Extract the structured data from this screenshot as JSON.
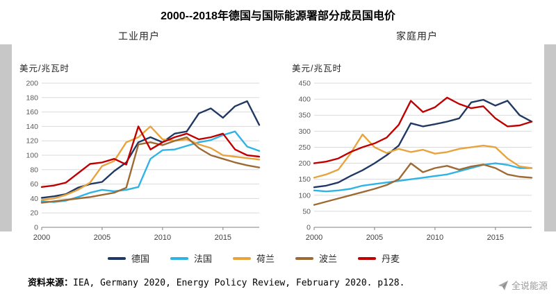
{
  "title": "2000--2018年德国与国际能源署部分成员国电价",
  "source_label": "资料来源：",
  "source_text": "IEA, Germany 2020, Energy Policy Review, February 2020. p128.",
  "watermark": "全说能源",
  "colors": {
    "germany": "#1f3864",
    "france": "#2eb3e6",
    "netherlands": "#e8a33d",
    "poland": "#9d6a33",
    "denmark": "#c00000",
    "grid": "#d9d9d9",
    "axis": "#808080"
  },
  "legend": [
    {
      "label": "德国",
      "color": "#1f3864"
    },
    {
      "label": "法国",
      "color": "#2eb3e6"
    },
    {
      "label": "荷兰",
      "color": "#e8a33d"
    },
    {
      "label": "波兰",
      "color": "#9d6a33"
    },
    {
      "label": "丹麦",
      "color": "#c00000"
    }
  ],
  "chart_data": [
    {
      "type": "line",
      "title": "工业用户",
      "ylabel": "美元/兆瓦时",
      "x": [
        2000,
        2001,
        2002,
        2003,
        2004,
        2005,
        2006,
        2007,
        2008,
        2009,
        2010,
        2011,
        2012,
        2013,
        2014,
        2015,
        2016,
        2017,
        2018
      ],
      "xlim": [
        2000,
        2018
      ],
      "xticks": [
        2000,
        2005,
        2010,
        2015
      ],
      "ylim": [
        0,
        200
      ],
      "ytick_step": 20,
      "grid": true,
      "series": [
        {
          "name": "德国",
          "color": "#1f3864",
          "values": [
            41,
            43,
            46,
            55,
            60,
            63,
            78,
            90,
            118,
            125,
            118,
            130,
            133,
            158,
            165,
            152,
            168,
            175,
            142
          ]
        },
        {
          "name": "法国",
          "color": "#2eb3e6",
          "values": [
            36,
            35,
            37,
            42,
            48,
            52,
            50,
            52,
            56,
            95,
            107,
            108,
            113,
            118,
            121,
            128,
            133,
            112,
            106
          ]
        },
        {
          "name": "荷兰",
          "color": "#e8a33d",
          "values": [
            38,
            40,
            45,
            52,
            62,
            85,
            92,
            118,
            125,
            140,
            122,
            120,
            122,
            115,
            110,
            100,
            98,
            96,
            94
          ]
        },
        {
          "name": "波兰",
          "color": "#9d6a33",
          "values": [
            34,
            36,
            38,
            40,
            42,
            45,
            48,
            55,
            115,
            118,
            114,
            120,
            125,
            110,
            100,
            95,
            90,
            86,
            83
          ]
        },
        {
          "name": "丹麦",
          "color": "#c00000",
          "values": [
            56,
            58,
            62,
            75,
            88,
            90,
            95,
            87,
            140,
            108,
            118,
            125,
            130,
            122,
            125,
            130,
            108,
            100,
            98
          ]
        }
      ]
    },
    {
      "type": "line",
      "title": "家庭用户",
      "ylabel": "美元/兆瓦时",
      "x": [
        2000,
        2001,
        2002,
        2003,
        2004,
        2005,
        2006,
        2007,
        2008,
        2009,
        2010,
        2011,
        2012,
        2013,
        2014,
        2015,
        2016,
        2017,
        2018
      ],
      "xlim": [
        2000,
        2018
      ],
      "xticks": [
        2000,
        2005,
        2010,
        2015
      ],
      "ylim": [
        0,
        450
      ],
      "ytick_step": 50,
      "grid": true,
      "series": [
        {
          "name": "德国",
          "color": "#1f3864",
          "values": [
            125,
            130,
            140,
            160,
            178,
            200,
            225,
            255,
            325,
            315,
            322,
            330,
            340,
            390,
            398,
            380,
            395,
            350,
            330
          ]
        },
        {
          "name": "法国",
          "color": "#2eb3e6",
          "values": [
            115,
            112,
            115,
            120,
            130,
            135,
            140,
            145,
            150,
            155,
            160,
            165,
            175,
            185,
            195,
            200,
            195,
            185,
            185
          ]
        },
        {
          "name": "荷兰",
          "color": "#e8a33d",
          "values": [
            155,
            165,
            180,
            230,
            290,
            250,
            232,
            245,
            235,
            242,
            230,
            235,
            245,
            250,
            255,
            250,
            215,
            190,
            185
          ]
        },
        {
          "name": "波兰",
          "color": "#9d6a33",
          "values": [
            70,
            80,
            90,
            100,
            110,
            120,
            132,
            150,
            200,
            172,
            185,
            192,
            180,
            190,
            196,
            185,
            165,
            158,
            155
          ]
        },
        {
          "name": "丹麦",
          "color": "#c00000",
          "values": [
            200,
            205,
            215,
            235,
            250,
            262,
            280,
            320,
            395,
            360,
            375,
            405,
            385,
            372,
            378,
            340,
            315,
            318,
            330
          ]
        }
      ]
    }
  ]
}
